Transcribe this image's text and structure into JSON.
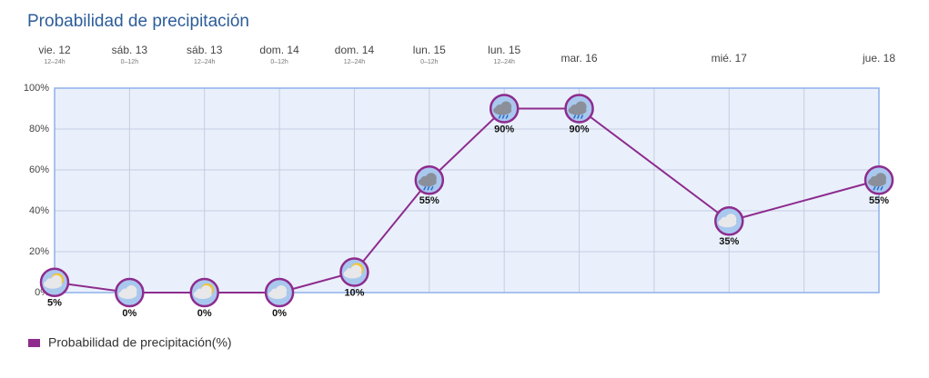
{
  "chart_data": {
    "type": "line",
    "title": "Probabilidad de precipitación",
    "categories": [
      "vie. 12",
      "sáb. 13",
      "sáb. 13",
      "dom. 14",
      "dom. 14",
      "lun. 15",
      "lun. 15",
      "mar. 16",
      null,
      "mié. 17",
      null,
      "jue. 18"
    ],
    "sublabels": [
      "12–24h",
      "0–12h",
      "12–24h",
      "0–12h",
      "12–24h",
      "0–12h",
      "12–24h",
      null,
      null,
      null,
      null,
      null
    ],
    "series": [
      {
        "name": "Probabilidad de precipitación(%)",
        "color": "#8e2c8e",
        "values": [
          5,
          0,
          0,
          0,
          10,
          55,
          90,
          90,
          null,
          35,
          null,
          55
        ],
        "value_labels": [
          "5%",
          "0%",
          "0%",
          "0%",
          "10%",
          "55%",
          "90%",
          "90%",
          null,
          "35%",
          null,
          "55%"
        ]
      }
    ],
    "ylim": [
      0,
      100
    ],
    "yticks": [
      {
        "value": 0,
        "label": "0%"
      },
      {
        "value": 20,
        "label": "20%"
      },
      {
        "value": 40,
        "label": "40%"
      },
      {
        "value": 60,
        "label": "60%"
      },
      {
        "value": 80,
        "label": "80%"
      },
      {
        "value": 100,
        "label": "100%"
      }
    ],
    "grid": true
  }
}
